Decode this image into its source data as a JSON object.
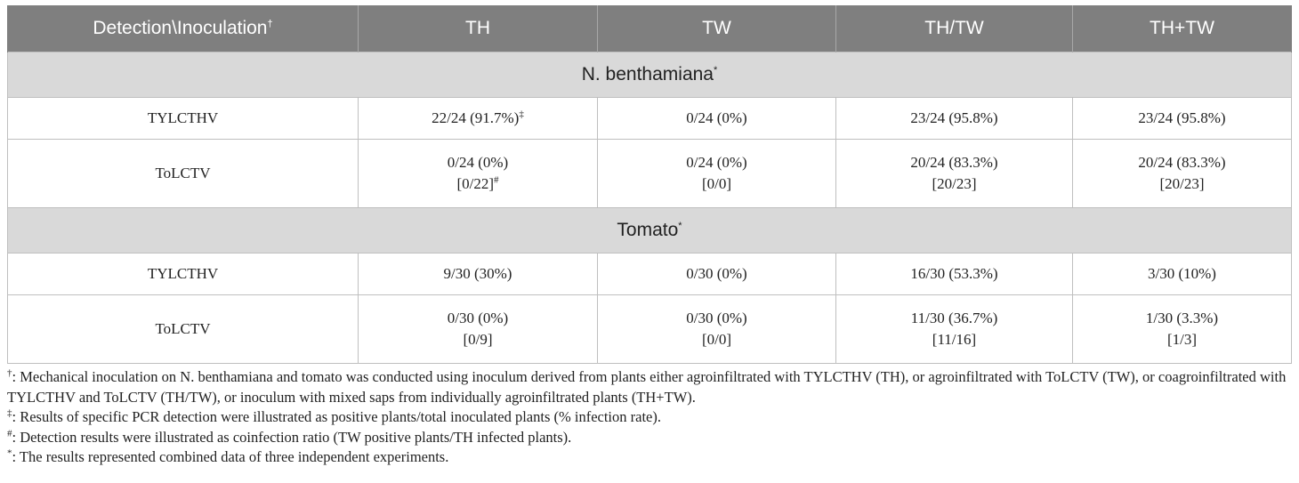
{
  "header": {
    "col0": "Detection\\Inoculation",
    "col0_mark": "†",
    "cols": [
      "TH",
      "TW",
      "TH/TW",
      "TH+TW"
    ]
  },
  "sections": [
    {
      "title": "N. benthamiana",
      "mark": "*",
      "rows": [
        {
          "label": "TYLCTHV",
          "cells": [
            {
              "value": "22/24 (91.7%)",
              "mark": "‡",
              "ratio": ""
            },
            {
              "value": "0/24 (0%)",
              "mark": "",
              "ratio": ""
            },
            {
              "value": "23/24 (95.8%)",
              "mark": "",
              "ratio": ""
            },
            {
              "value": "23/24 (95.8%)",
              "mark": "",
              "ratio": ""
            }
          ]
        },
        {
          "label": "ToLCTV",
          "cells": [
            {
              "value": "0/24 (0%)",
              "mark": "",
              "ratio": "[0/22]",
              "ratio_mark": "#"
            },
            {
              "value": "0/24 (0%)",
              "mark": "",
              "ratio": "[0/0]",
              "ratio_mark": ""
            },
            {
              "value": "20/24 (83.3%)",
              "mark": "",
              "ratio": "[20/23]",
              "ratio_mark": ""
            },
            {
              "value": "20/24 (83.3%)",
              "mark": "",
              "ratio": "[20/23]",
              "ratio_mark": ""
            }
          ]
        }
      ]
    },
    {
      "title": "Tomato",
      "mark": "*",
      "rows": [
        {
          "label": "TYLCTHV",
          "cells": [
            {
              "value": "9/30 (30%)",
              "mark": "",
              "ratio": ""
            },
            {
              "value": "0/30 (0%)",
              "mark": "",
              "ratio": ""
            },
            {
              "value": "16/30 (53.3%)",
              "mark": "",
              "ratio": ""
            },
            {
              "value": "3/30 (10%)",
              "mark": "",
              "ratio": ""
            }
          ]
        },
        {
          "label": "ToLCTV",
          "cells": [
            {
              "value": "0/30 (0%)",
              "mark": "",
              "ratio": "[0/9]",
              "ratio_mark": ""
            },
            {
              "value": "0/30 (0%)",
              "mark": "",
              "ratio": "[0/0]",
              "ratio_mark": ""
            },
            {
              "value": "11/30 (36.7%)",
              "mark": "",
              "ratio": "[11/16]",
              "ratio_mark": ""
            },
            {
              "value": "1/30 (3.3%)",
              "mark": "",
              "ratio": "[1/3]",
              "ratio_mark": ""
            }
          ]
        }
      ]
    }
  ],
  "footnotes": [
    {
      "mark": "†",
      "text": ": Mechanical inoculation on N. benthamiana and tomato was conducted using inoculum derived from plants either agroinfiltrated with TYLCTHV (TH), or agroinfiltrated with ToLCTV (TW), or coagroinfiltrated with TYLCTHV and ToLCTV (TH/TW), or inoculum with mixed saps from individually agroinfiltrated plants (TH+TW)."
    },
    {
      "mark": "‡",
      "text": ": Results of specific PCR detection were illustrated as positive plants/total inoculated plants (% infection rate)."
    },
    {
      "mark": "#",
      "text": ": Detection results were illustrated as coinfection ratio (TW positive plants/TH infected plants)."
    },
    {
      "mark": "*",
      "text": ": The results represented combined data of three independent experiments."
    }
  ]
}
